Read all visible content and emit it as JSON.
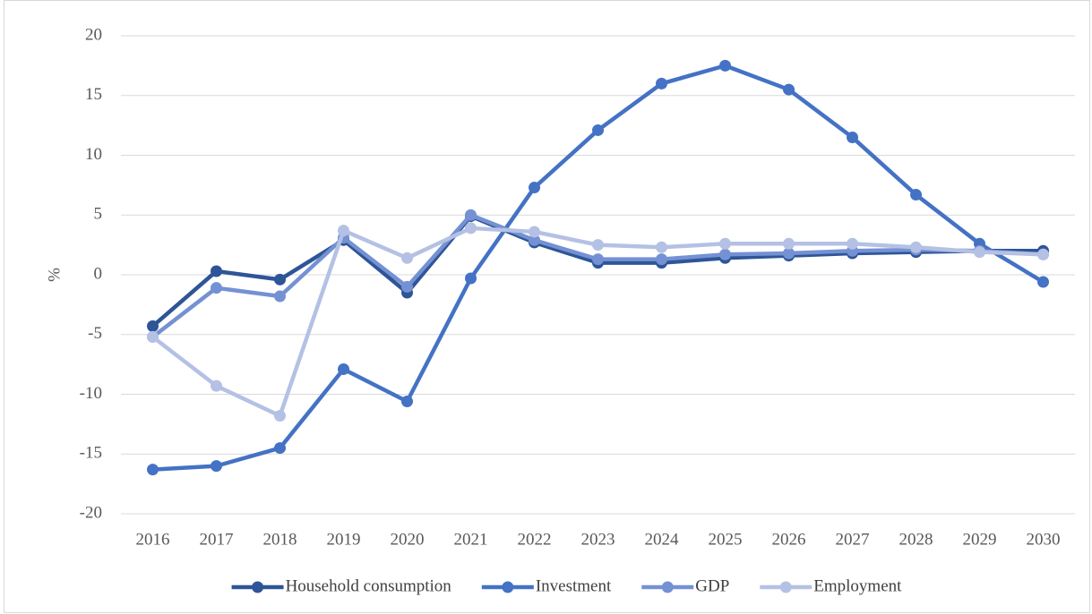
{
  "chart_data": {
    "type": "line",
    "y_label": "%",
    "categories": [
      "2016",
      "2017",
      "2018",
      "2019",
      "2020",
      "2021",
      "2022",
      "2023",
      "2024",
      "2025",
      "2026",
      "2027",
      "2028",
      "2029",
      "2030"
    ],
    "series": [
      {
        "name": "Household consumption",
        "color": "#2e5597",
        "values": [
          -4.3,
          0.3,
          -0.4,
          2.9,
          -1.5,
          4.9,
          2.7,
          1.0,
          1.0,
          1.4,
          1.6,
          1.8,
          1.9,
          2.0,
          2.0
        ]
      },
      {
        "name": "Investment",
        "color": "#4472c4",
        "values": [
          -16.3,
          -16.0,
          -14.5,
          -7.9,
          -10.6,
          -0.3,
          7.3,
          12.1,
          16.0,
          17.5,
          15.5,
          11.5,
          6.7,
          2.6,
          -0.6
        ]
      },
      {
        "name": "GDP",
        "color": "#7491d4",
        "values": [
          -5.2,
          -1.1,
          -1.8,
          3.1,
          -1.0,
          5.0,
          2.9,
          1.3,
          1.3,
          1.7,
          1.8,
          2.0,
          2.1,
          2.0,
          1.7
        ]
      },
      {
        "name": "Employment",
        "color": "#b4c1e4",
        "values": [
          -5.2,
          -9.3,
          -11.8,
          3.7,
          1.4,
          3.9,
          3.6,
          2.5,
          2.3,
          2.6,
          2.6,
          2.6,
          2.3,
          1.9,
          1.7
        ]
      }
    ],
    "ylim": [
      -20,
      20
    ],
    "yticks": [
      -20,
      -15,
      -10,
      -5,
      0,
      5,
      10,
      15,
      20
    ],
    "grid": true,
    "legend": "bottom"
  }
}
